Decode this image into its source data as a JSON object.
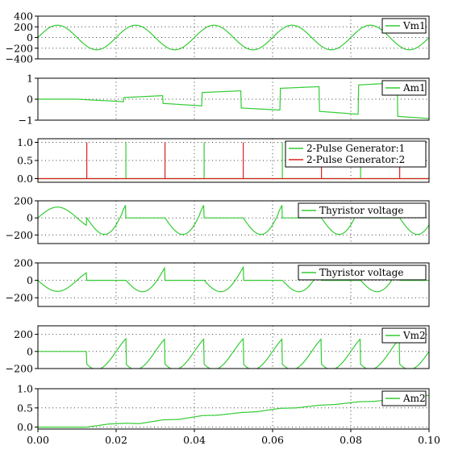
{
  "colors": {
    "green": "#33cc33",
    "red": "#dd1f1f",
    "frame": "#000000"
  },
  "x_axis": {
    "ticks": [
      "0.00",
      "0.02",
      "0.04",
      "0.06",
      "0.08",
      "0.10"
    ],
    "xlim": [
      0,
      0.1
    ]
  },
  "chart_data": [
    {
      "type": "line",
      "ylim": [
        -400,
        400
      ],
      "yticks": [
        "400",
        "200",
        "0",
        "−200",
        "−400"
      ],
      "yvals": [
        400,
        200,
        0,
        -200,
        -400
      ],
      "legend": "top-right",
      "series": [
        {
          "name": "Vm1",
          "color": "#33cc33",
          "model": {
            "kind": "sine",
            "amplitude": 230,
            "frequency_hz": 50,
            "phase": 0
          }
        }
      ]
    },
    {
      "type": "line",
      "ylim": [
        -1,
        1
      ],
      "yticks": [
        "1",
        "0",
        "−1"
      ],
      "yvals": [
        1,
        0,
        -1
      ],
      "legend": "top-right",
      "series": [
        {
          "name": "Am1",
          "color": "#33cc33",
          "model": {
            "kind": "ac_current",
            "segments": [
              [
                0.0,
                0.01,
                0.0,
                0.0
              ],
              [
                0.01,
                0.022,
                0.0,
                -0.12
              ],
              [
                0.022,
                0.032,
                0.08,
                0.17
              ],
              [
                0.032,
                0.042,
                -0.2,
                -0.32
              ],
              [
                0.042,
                0.052,
                0.32,
                0.4
              ],
              [
                0.052,
                0.062,
                -0.42,
                -0.52
              ],
              [
                0.062,
                0.072,
                0.52,
                0.6
              ],
              [
                0.072,
                0.082,
                -0.58,
                -0.72
              ],
              [
                0.082,
                0.092,
                0.68,
                0.78
              ],
              [
                0.092,
                0.1,
                -0.82,
                -0.92
              ]
            ]
          }
        }
      ]
    },
    {
      "type": "line",
      "ylim": [
        -0.1,
        1.1
      ],
      "yticks": [
        "1.0",
        "0.5",
        "0.0"
      ],
      "yvals": [
        1,
        0.5,
        0
      ],
      "legend": "top-right",
      "series": [
        {
          "name": "2-Pulse Generator:1",
          "color": "#33cc33",
          "pulses": [
            0.0225,
            0.0425,
            0.0625,
            0.0825
          ]
        },
        {
          "name": "2-Pulse Generator:2",
          "color": "#dd1f1f",
          "pulses": [
            0.0125,
            0.0325,
            0.0525,
            0.0725,
            0.0925
          ]
        }
      ]
    },
    {
      "type": "line",
      "ylim": [
        -300,
        200
      ],
      "yticks": [
        "200",
        "0",
        "−200"
      ],
      "yvals": [
        200,
        0,
        -200
      ],
      "legend": "top-right",
      "series": [
        {
          "name": "Thyristor voltage",
          "color": "#33cc33",
          "model": {
            "kind": "thyristor",
            "polarity": 1
          }
        }
      ]
    },
    {
      "type": "line",
      "ylim": [
        -300,
        200
      ],
      "yticks": [
        "200",
        "0",
        "−200"
      ],
      "yvals": [
        200,
        0,
        -200
      ],
      "legend": "top-right",
      "series": [
        {
          "name": "Thyristor voltage",
          "color": "#33cc33",
          "model": {
            "kind": "thyristor",
            "polarity": -1
          }
        }
      ]
    },
    {
      "type": "line",
      "ylim": [
        -200,
        300
      ],
      "yticks": [
        "200",
        "0",
        "−200"
      ],
      "yvals": [
        200,
        0,
        -200
      ],
      "legend": "top-right",
      "series": [
        {
          "name": "Vm2",
          "color": "#33cc33",
          "model": {
            "kind": "rectified",
            "amplitude": 210,
            "fire_delay": 0.0025,
            "start": 0.0125
          }
        }
      ]
    },
    {
      "type": "line",
      "ylim": [
        -0.05,
        1.0
      ],
      "yticks": [
        "1.0",
        "0.5",
        "0.0"
      ],
      "yvals": [
        1,
        0.5,
        0
      ],
      "legend": "top-right",
      "series": [
        {
          "name": "Am2",
          "color": "#33cc33",
          "model": {
            "kind": "charging",
            "start": 0.0125,
            "points": [
              [
                0.0,
                0.0
              ],
              [
                0.0125,
                0.0
              ],
              [
                0.018,
                0.08
              ],
              [
                0.0225,
                0.1
              ],
              [
                0.026,
                0.09
              ],
              [
                0.032,
                0.19
              ],
              [
                0.036,
                0.2
              ],
              [
                0.042,
                0.3
              ],
              [
                0.046,
                0.31
              ],
              [
                0.052,
                0.38
              ],
              [
                0.056,
                0.4
              ],
              [
                0.062,
                0.49
              ],
              [
                0.066,
                0.5
              ],
              [
                0.072,
                0.57
              ],
              [
                0.076,
                0.59
              ],
              [
                0.082,
                0.66
              ],
              [
                0.086,
                0.67
              ],
              [
                0.092,
                0.74
              ],
              [
                0.096,
                0.76
              ],
              [
                0.1,
                0.83
              ]
            ]
          }
        }
      ]
    }
  ]
}
